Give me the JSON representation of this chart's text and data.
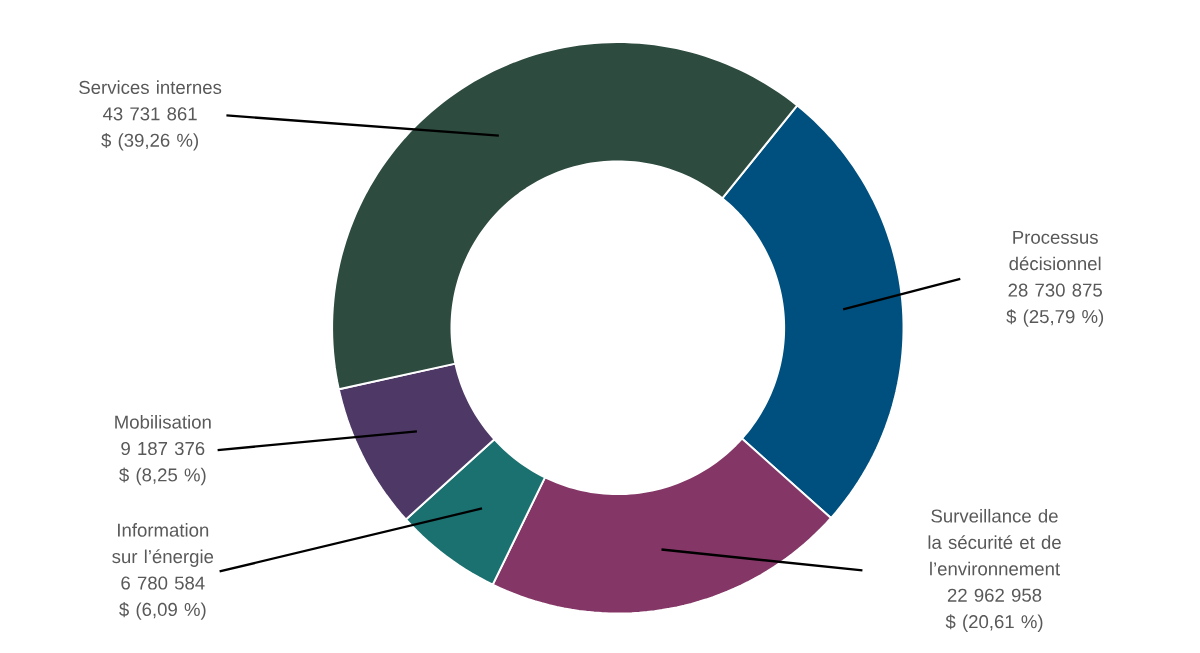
{
  "chart_data": {
    "type": "donut",
    "categories": [
      "Processus décisionnel",
      "Surveillance de la sécurité et de l’environnement",
      "Information sur l’énergie",
      "Mobilisation",
      "Services internes"
    ],
    "values": [
      28730875,
      22962958,
      6780584,
      9187376,
      43731861
    ],
    "colors": [
      "#00507f",
      "#843766",
      "#1b7070",
      "#4e3966",
      "#2e4b3f"
    ],
    "value_labels": [
      "28 730 875 $ (25,79 %)",
      "22 962 958 $ (20,61 %)",
      "6 780 584 $ (6,09 %)",
      "9 187 376 $ (8,25 %)",
      "43 731 861 $ (39,26 %)"
    ]
  }
}
